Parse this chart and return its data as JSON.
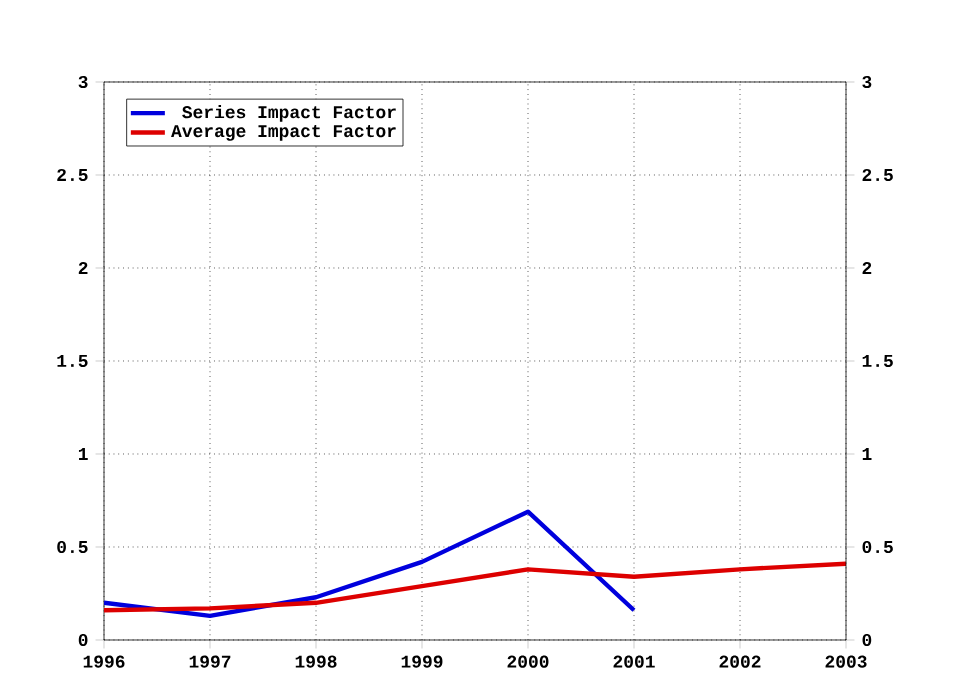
{
  "chart_data": {
    "type": "line",
    "x": [
      1996,
      1997,
      1998,
      1999,
      2000,
      2001,
      2002,
      2003
    ],
    "series": [
      {
        "name": "Series Impact Factor",
        "color": "#0000dd",
        "values": [
          0.2,
          0.13,
          0.23,
          0.42,
          0.69,
          0.16,
          null,
          null
        ]
      },
      {
        "name": "Average Impact Factor",
        "color": "#dd0000",
        "values": [
          0.16,
          0.17,
          0.2,
          0.29,
          0.38,
          0.34,
          0.38,
          0.41
        ]
      }
    ],
    "xlim": [
      1996,
      2003
    ],
    "xticks": [
      1996,
      1997,
      1998,
      1999,
      2000,
      2001,
      2002,
      2003
    ],
    "ylim": [
      0,
      3
    ],
    "yticks": [
      0,
      {
        "value": 0.5,
        "label": "0.5"
      },
      1,
      {
        "value": 1.5,
        "label": "1.5"
      },
      2,
      {
        "value": 2.5,
        "label": "2.5"
      },
      3
    ],
    "y2lim": [
      0,
      3
    ],
    "y2ticks": [
      0,
      {
        "value": 0.5,
        "label": "0.5"
      },
      1,
      {
        "value": 1.5,
        "label": "1.5"
      },
      2,
      {
        "value": 2.5,
        "label": "2.5"
      },
      3
    ],
    "grid": true,
    "legend": "top left",
    "line_style": "solid",
    "marker": "none"
  }
}
